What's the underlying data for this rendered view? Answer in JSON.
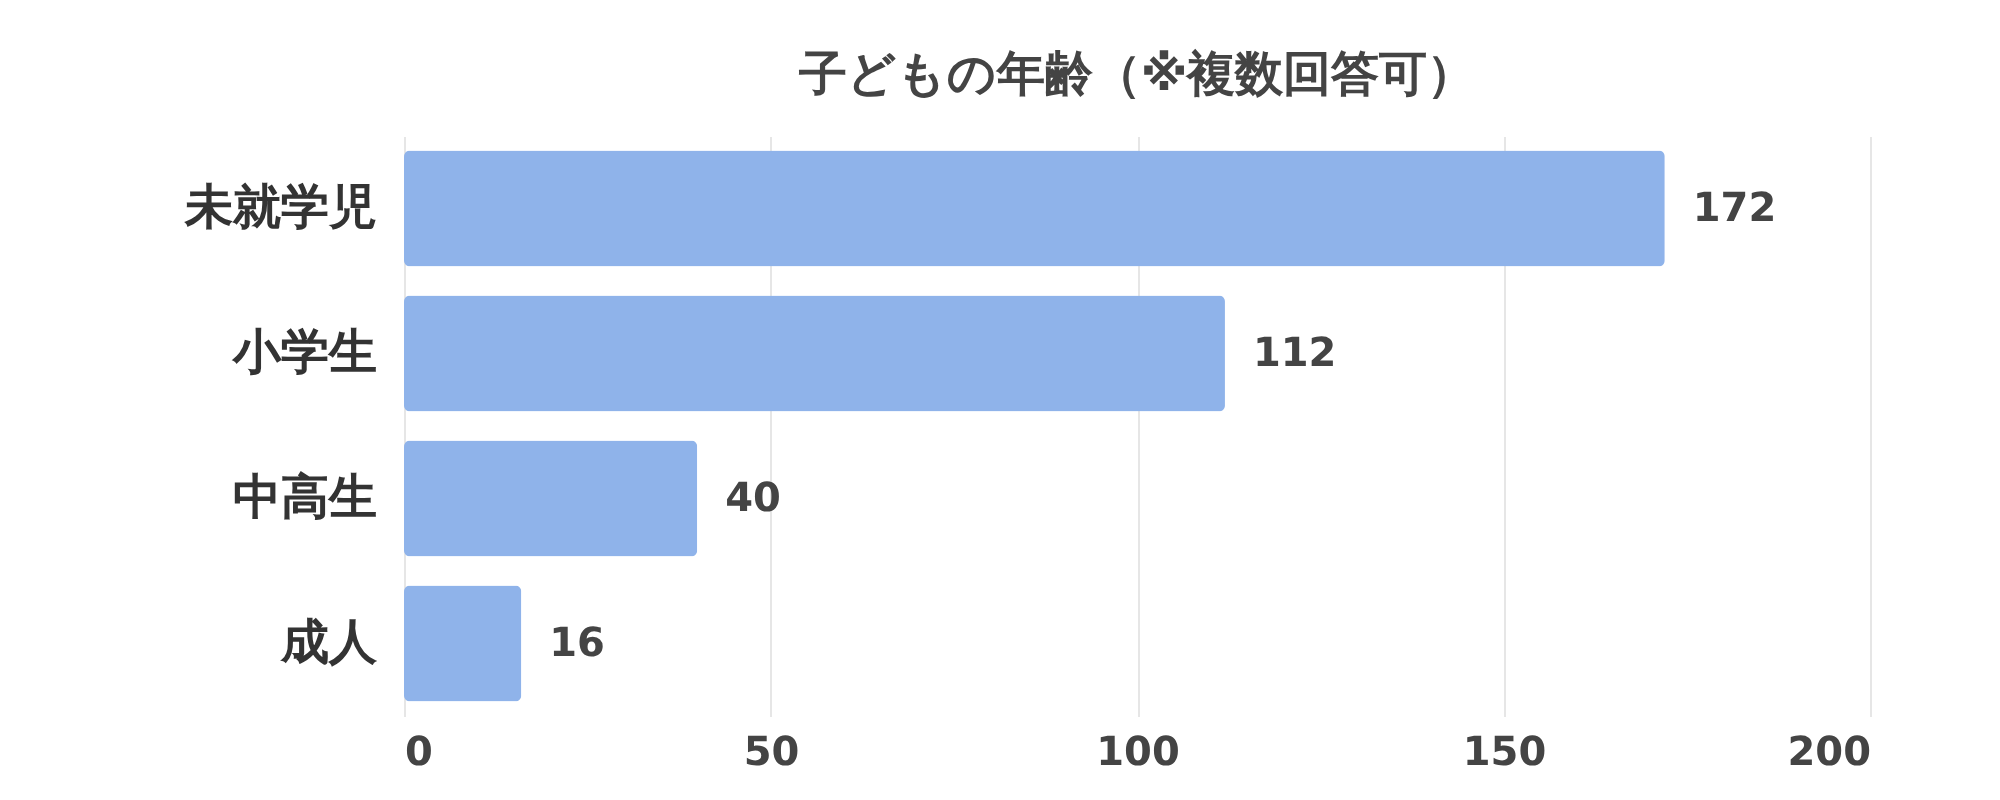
{
  "chart_data": {
    "type": "bar",
    "orientation": "horizontal",
    "title": "子どもの年齢（※複数回答可）",
    "categories": [
      "未就学児",
      "小学生",
      "中高生",
      "成人"
    ],
    "values": [
      172,
      112,
      40,
      16
    ],
    "color": "#8fb3ea",
    "xlim": [
      0,
      200
    ],
    "xticks": [
      0,
      50,
      100,
      150,
      200
    ],
    "grid": "x",
    "data_labels": true
  }
}
